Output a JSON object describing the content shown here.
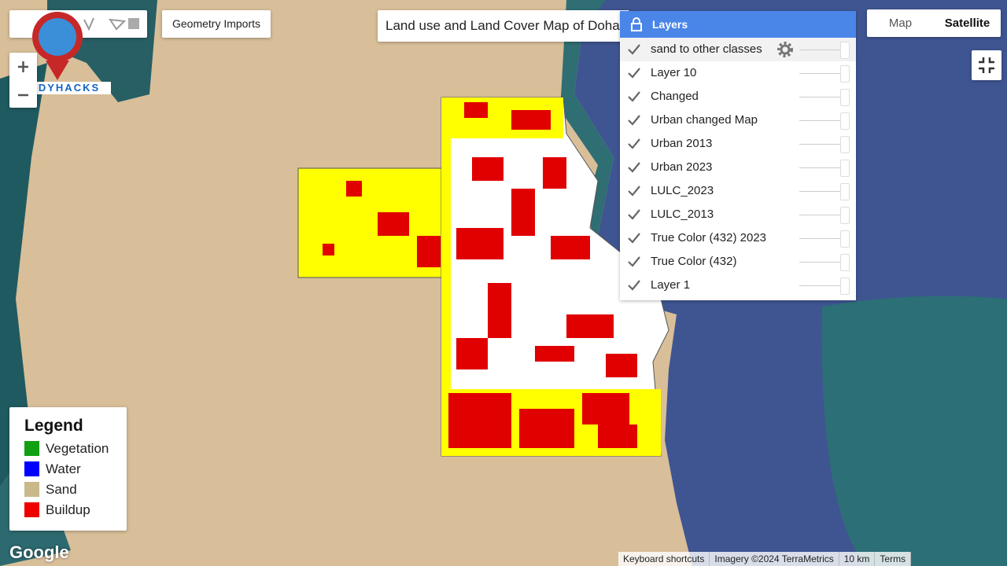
{
  "logo": "STUDYHACKS",
  "geometry_imports": "Geometry Imports",
  "map_title": "Land use and Land Cover Map of Doha",
  "layers_panel": {
    "title": "Layers",
    "layers": [
      "sand to other classes",
      "Layer 10",
      "Changed",
      "Urban changed Map",
      "Urban 2013",
      "Urban 2023",
      "LULC_2023",
      "LULC_2013",
      "True Color (432) 2023",
      "True Color (432)",
      "Layer 1"
    ]
  },
  "map_type": [
    "Map",
    "Satellite"
  ],
  "legend": {
    "title": "Legend",
    "items": [
      {
        "name": "Vegetation",
        "color": "#11a011"
      },
      {
        "name": "Water",
        "color": "#0000ff"
      },
      {
        "name": "Sand",
        "color": "#c8b88a"
      },
      {
        "name": "Buildup",
        "color": "#ee0000"
      }
    ]
  },
  "google_logo": "Google",
  "footer": [
    "Keyboard shortcuts",
    "Imagery ©2024 TerraMetrics",
    "10 km",
    "Terms"
  ]
}
